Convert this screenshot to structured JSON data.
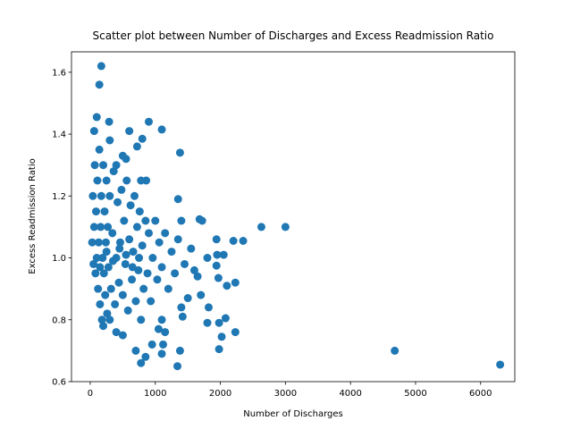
{
  "chart_data": {
    "type": "scatter",
    "title": "Scatter plot between Number of Discharges and Excess Readmission Ratio",
    "x_label": "Number of Discharges",
    "y_label": "Excess Readmission Ratio",
    "color": "#1f77b4",
    "grid": false,
    "xlim": [
      -288,
      6525
    ],
    "ylim": [
      0.6,
      1.666
    ],
    "xticks": [
      0,
      1000,
      2000,
      3000,
      4000,
      5000,
      6000
    ],
    "yticks": [
      0.6,
      0.8,
      {
        "value": 1,
        "label": "1.0"
      },
      1.2,
      1.4,
      1.6
    ],
    "x": [
      170,
      140,
      100,
      900,
      1100,
      1380,
      290,
      60,
      600,
      800,
      720,
      550,
      860,
      780,
      1350,
      1680,
      1720,
      1400,
      2630,
      3000,
      2200,
      2350,
      1940,
      2050,
      1950,
      1800,
      1940,
      1970,
      2100,
      2230,
      1650,
      1700,
      1500,
      1820,
      1400,
      1420,
      1800,
      2080,
      1980,
      2230,
      2020,
      1980,
      1380,
      1340,
      4680,
      6300,
      780,
      850,
      1100,
      1120,
      1050,
      1150,
      1100,
      950,
      700,
      500,
      400,
      30,
      40,
      50,
      60,
      70,
      80,
      90,
      100,
      110,
      120,
      130,
      140,
      150,
      160,
      170,
      180,
      190,
      200,
      210,
      220,
      230,
      240,
      250,
      260,
      270,
      280,
      300,
      320,
      340,
      360,
      380,
      400,
      420,
      440,
      460,
      480,
      500,
      520,
      540,
      560,
      580,
      600,
      620,
      640,
      660,
      680,
      700,
      720,
      740,
      760,
      780,
      800,
      820,
      850,
      880,
      900,
      930,
      960,
      1000,
      1030,
      1060,
      1100,
      1150,
      1200,
      1250,
      1300,
      1350,
      1450,
      1550,
      1600,
      150,
      250,
      350,
      450,
      550,
      650,
      750,
      300,
      200,
      400,
      300,
      500
    ],
    "y": [
      1.62,
      1.56,
      1.455,
      1.44,
      1.415,
      1.34,
      1.44,
      1.41,
      1.41,
      1.385,
      1.36,
      1.32,
      1.25,
      1.25,
      1.19,
      1.125,
      1.12,
      1.12,
      1.1,
      1.1,
      1.055,
      1.055,
      1.06,
      1.01,
      1.01,
      1.0,
      0.975,
      0.935,
      0.91,
      0.92,
      0.94,
      0.88,
      0.87,
      0.84,
      0.84,
      0.81,
      0.79,
      0.805,
      0.79,
      0.76,
      0.745,
      0.705,
      0.7,
      0.65,
      0.7,
      0.655,
      0.66,
      0.68,
      0.69,
      0.72,
      0.77,
      0.76,
      0.8,
      0.72,
      0.7,
      0.75,
      0.76,
      1.05,
      1.2,
      0.98,
      1.1,
      1.3,
      0.95,
      1.15,
      1.0,
      1.25,
      0.9,
      1.05,
      1.35,
      0.85,
      1.1,
      1.2,
      0.8,
      1.0,
      1.3,
      0.95,
      1.15,
      0.88,
      1.05,
      1.25,
      0.82,
      1.1,
      0.97,
      1.2,
      0.9,
      1.08,
      1.28,
      0.85,
      1.0,
      1.18,
      0.92,
      1.05,
      1.22,
      0.88,
      1.12,
      0.98,
      1.25,
      0.83,
      1.06,
      1.17,
      0.93,
      1.02,
      1.2,
      0.86,
      1.1,
      0.96,
      1.15,
      0.8,
      1.04,
      0.9,
      1.12,
      0.95,
      1.08,
      0.86,
      1.0,
      1.12,
      0.93,
      1.05,
      0.97,
      1.08,
      0.9,
      1.02,
      0.95,
      1.06,
      0.98,
      1.03,
      0.96,
      0.97,
      1.02,
      0.99,
      1.03,
      1.01,
      0.97,
      1.0,
      0.8,
      0.78,
      1.3,
      1.38,
      1.33
    ]
  }
}
